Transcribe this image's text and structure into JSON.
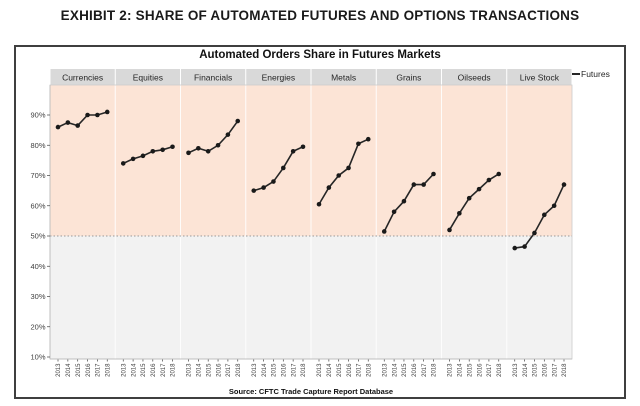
{
  "page": {
    "exhibit_title": "EXHIBIT 2: SHARE OF AUTOMATED FUTURES AND OPTIONS TRANSACTIONS"
  },
  "chart": {
    "title": "Automated Orders Share in Futures Markets",
    "legend_label": "Futures",
    "source": "Source: CFTC Trade Capture Report Database"
  },
  "chart_data": {
    "type": "line",
    "title": "Automated Orders Share in Futures Markets",
    "x": [
      "2013",
      "2014",
      "2015",
      "2016",
      "2017",
      "2018"
    ],
    "panels": [
      {
        "name": "Currencies",
        "values": [
          86,
          87.5,
          86.5,
          90,
          90,
          91
        ]
      },
      {
        "name": "Equities",
        "values": [
          74,
          75.5,
          76.5,
          78,
          78.5,
          79.5
        ]
      },
      {
        "name": "Financials",
        "values": [
          77.5,
          79,
          78,
          80,
          83.5,
          88
        ]
      },
      {
        "name": "Energies",
        "values": [
          65,
          66,
          68,
          72.5,
          78,
          79.5
        ]
      },
      {
        "name": "Metals",
        "values": [
          60.5,
          66,
          70,
          72.5,
          80.5,
          82
        ]
      },
      {
        "name": "Grains",
        "values": [
          51.5,
          58,
          61.5,
          67,
          67,
          70.5
        ]
      },
      {
        "name": "Oilseeds",
        "values": [
          52,
          57.5,
          62.5,
          65.5,
          68.5,
          70.5
        ]
      },
      {
        "name": "Live Stock",
        "values": [
          46,
          46.5,
          51,
          57,
          60,
          67
        ]
      }
    ],
    "legend": [
      "Futures"
    ],
    "yticks": [
      90,
      80,
      70,
      60,
      50,
      40,
      30,
      20,
      10
    ],
    "ytick_suffix": "%",
    "ylim": [
      10,
      93
    ],
    "reference_line": 50,
    "grid": false,
    "legend_position": "top-right",
    "source": "Source: CFTC Trade Capture Report Database",
    "colors": {
      "above_ref_fill": "#fce4d6",
      "below_ref_fill": "#f2f2f2",
      "band_fill": "#d9d9d9",
      "separator": "#ffffff",
      "line": "#262626",
      "marker": "#1a1a1a",
      "axis": "#bfbfbf",
      "tick_text": "#404040",
      "band_text": "#262626",
      "ref_line": "#999999"
    }
  }
}
